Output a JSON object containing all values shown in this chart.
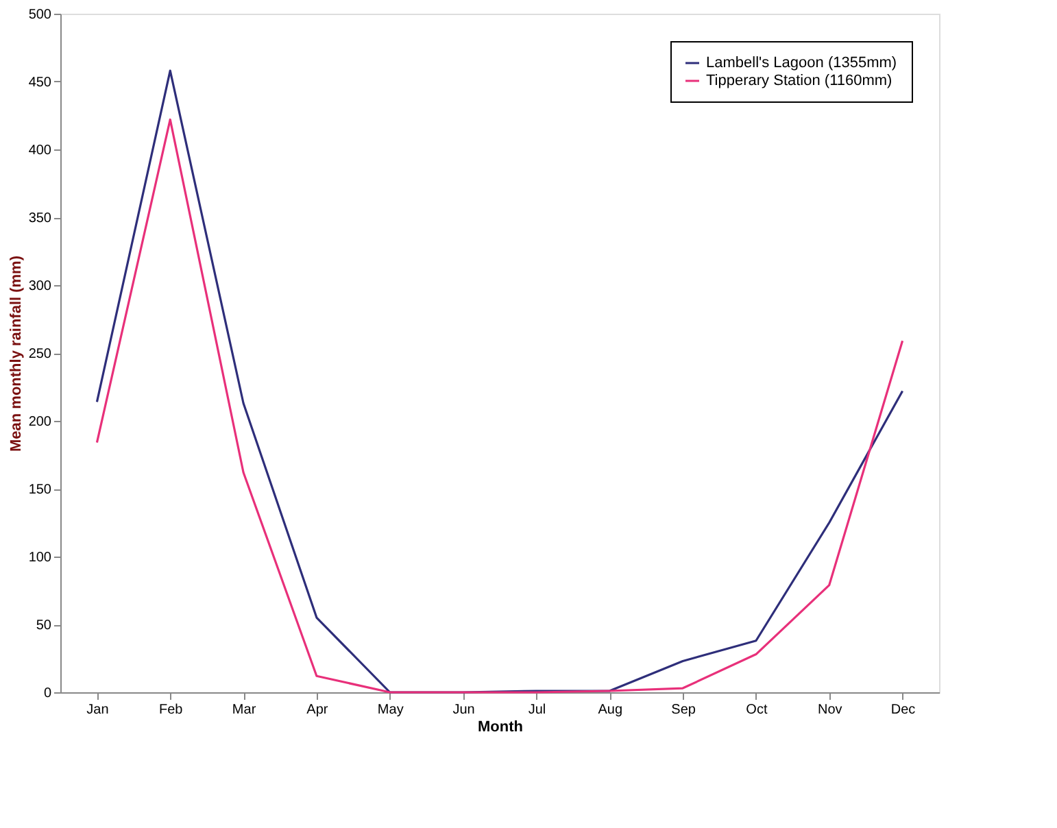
{
  "chart_data": {
    "type": "line",
    "xlabel": "Month",
    "ylabel": "Mean monthly rainfall (mm)",
    "categories": [
      "Jan",
      "Feb",
      "Mar",
      "Apr",
      "May",
      "Jun",
      "Jul",
      "Aug",
      "Sep",
      "Oct",
      "Nov",
      "Dec"
    ],
    "series": [
      {
        "name": "Lambell's Lagoon (1355mm)",
        "color": "#2e2e7a",
        "values": [
          214,
          458,
          213,
          55,
          0,
          0,
          1,
          1,
          23,
          38,
          125,
          222
        ]
      },
      {
        "name": "Tipperary Station (1160mm)",
        "color": "#e8307a",
        "values": [
          184,
          422,
          162,
          12,
          0,
          0,
          0,
          1,
          3,
          28,
          79,
          259
        ]
      }
    ],
    "ylim": [
      0,
      500
    ],
    "yticks": [
      0,
      50,
      100,
      150,
      200,
      250,
      300,
      350,
      400,
      450,
      500
    ],
    "grid": false,
    "legend": "top right",
    "marker": "none",
    "line_style": "solid"
  }
}
